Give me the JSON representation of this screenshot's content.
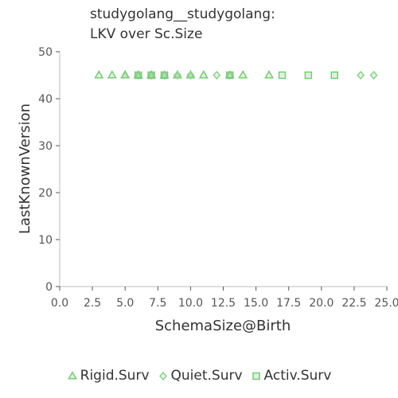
{
  "chart_data": {
    "type": "scatter",
    "title_lines": [
      "studygolang__studygolang:",
      "LKV over Sc.Size"
    ],
    "xlabel": "SchemaSize@Birth",
    "ylabel": "LastKnownVersion",
    "xlim": [
      0,
      25
    ],
    "ylim": [
      0,
      50
    ],
    "xticks": [
      0,
      2.5,
      5,
      7.5,
      10,
      12.5,
      15,
      17.5,
      20,
      22.5,
      25
    ],
    "xtick_labels": [
      "0.0",
      "2.5",
      "5.0",
      "7.5",
      "10.0",
      "12.5",
      "15.0",
      "17.5",
      "20.0",
      "22.5",
      "25.0"
    ],
    "yticks": [
      0,
      10,
      20,
      30,
      40,
      50
    ],
    "ytick_labels": [
      "0",
      "10",
      "20",
      "30",
      "40",
      "50"
    ],
    "legend_position": "bottom",
    "series": [
      {
        "name": "Rigid.Surv",
        "marker": "triangle",
        "color": "#7cc87c",
        "x": [
          3,
          4,
          5,
          5,
          6,
          6,
          7,
          7,
          8,
          9,
          9,
          10,
          10,
          11,
          13,
          14,
          16
        ],
        "y": [
          45,
          45,
          45,
          45,
          45,
          45,
          45,
          45,
          45,
          45,
          45,
          45,
          45,
          45,
          45,
          45,
          45
        ]
      },
      {
        "name": "Quiet.Surv",
        "marker": "diamond",
        "color": "#8fd08f",
        "x": [
          6,
          7,
          8,
          9,
          10,
          12,
          13,
          23,
          24
        ],
        "y": [
          45,
          45,
          45,
          45,
          45,
          45,
          45,
          45,
          45
        ]
      },
      {
        "name": "Activ.Surv",
        "marker": "square",
        "color": "#7cc87c",
        "x": [
          6,
          7,
          8,
          13,
          17,
          19,
          21
        ],
        "y": [
          45,
          45,
          45,
          45,
          45,
          45,
          45
        ]
      }
    ]
  }
}
